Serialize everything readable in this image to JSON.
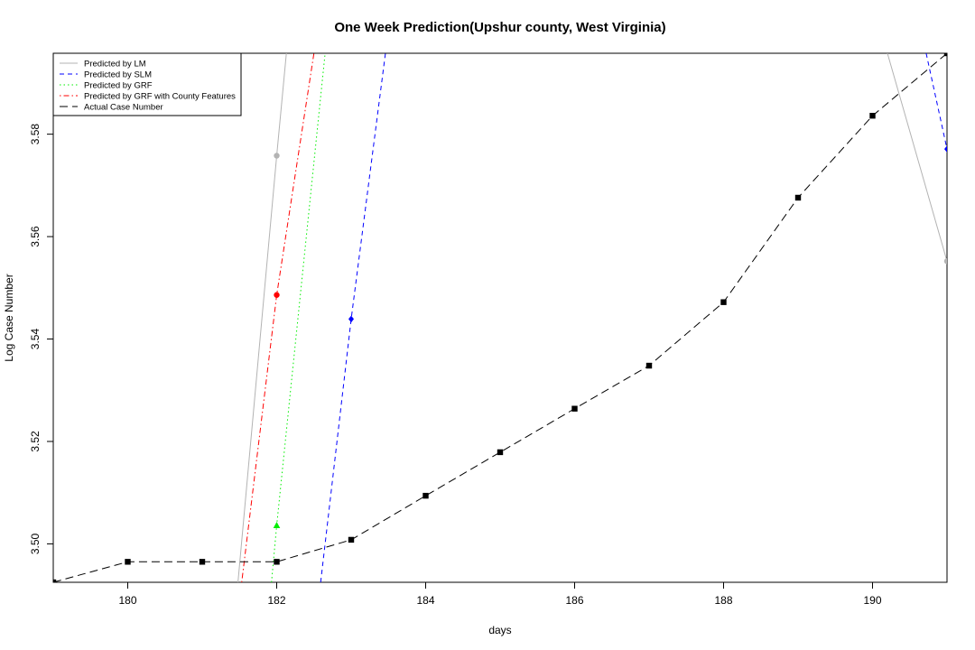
{
  "chart_data": {
    "type": "line",
    "title": "One Week Prediction(Upshur county, West Virginia)",
    "xlabel": "days",
    "ylabel": "Log Case Number",
    "xlim": [
      179,
      191
    ],
    "ylim": [
      3.4925,
      3.5958
    ],
    "x_ticks": [
      180,
      182,
      184,
      186,
      188,
      190
    ],
    "y_ticks": [
      3.5,
      3.52,
      3.54,
      3.56,
      3.58
    ],
    "y_tick_labels": [
      "3.50",
      "3.52",
      "3.54",
      "3.56",
      "3.58"
    ],
    "legend_position": "top-left",
    "series": [
      {
        "name": "Predicted by LM",
        "color": "#b3b3b3",
        "dash": "solid",
        "marker": "circle",
        "x": [
          181.48,
          182,
          182.13
        ],
        "y": [
          3.4925,
          3.5758,
          3.5958
        ],
        "marker_points": [
          [
            182,
            3.5758
          ]
        ],
        "segment2": {
          "x": [
            190.2,
            191
          ],
          "y": [
            3.5958,
            3.5552
          ]
        },
        "marker_points2": [
          [
            191,
            3.5552
          ]
        ]
      },
      {
        "name": "Predicted by SLM",
        "color": "#0000ff",
        "dash": "dashed",
        "marker": "diamond",
        "x": [
          182.59,
          183,
          183.46
        ],
        "y": [
          3.4925,
          3.5439,
          3.5958
        ],
        "marker_points": [
          [
            183,
            3.5439
          ]
        ],
        "segment2": {
          "x": [
            190.72,
            191
          ],
          "y": [
            3.5958,
            3.5771
          ]
        },
        "marker_points2": [
          [
            191,
            3.5771
          ]
        ]
      },
      {
        "name": "Predicted by GRF",
        "color": "#00ee00",
        "dash": "dotted",
        "marker": "triangle",
        "x": [
          181.93,
          182,
          182.65
        ],
        "y": [
          3.4925,
          3.5036,
          3.5958
        ],
        "marker_points": [
          [
            182,
            3.5036
          ]
        ]
      },
      {
        "name": "Predicted by GRF with County Features",
        "color": "#ff0000",
        "dash": "dotdash",
        "marker": "circle",
        "x": [
          181.53,
          182,
          182.5
        ],
        "y": [
          3.4925,
          3.5486,
          3.5958
        ],
        "marker_points": [
          [
            182,
            3.5486
          ]
        ]
      },
      {
        "name": "Actual Case Number",
        "color": "#000000",
        "dash": "longdash",
        "marker": "square",
        "x": [
          179,
          180,
          181,
          182,
          183,
          184,
          185,
          186,
          187,
          188,
          189,
          190,
          191
        ],
        "y": [
          3.4925,
          3.4965,
          3.4965,
          3.4965,
          3.5008,
          3.5094,
          3.5179,
          3.5264,
          3.5348,
          3.5472,
          3.5676,
          3.5836,
          3.5958
        ]
      }
    ]
  }
}
